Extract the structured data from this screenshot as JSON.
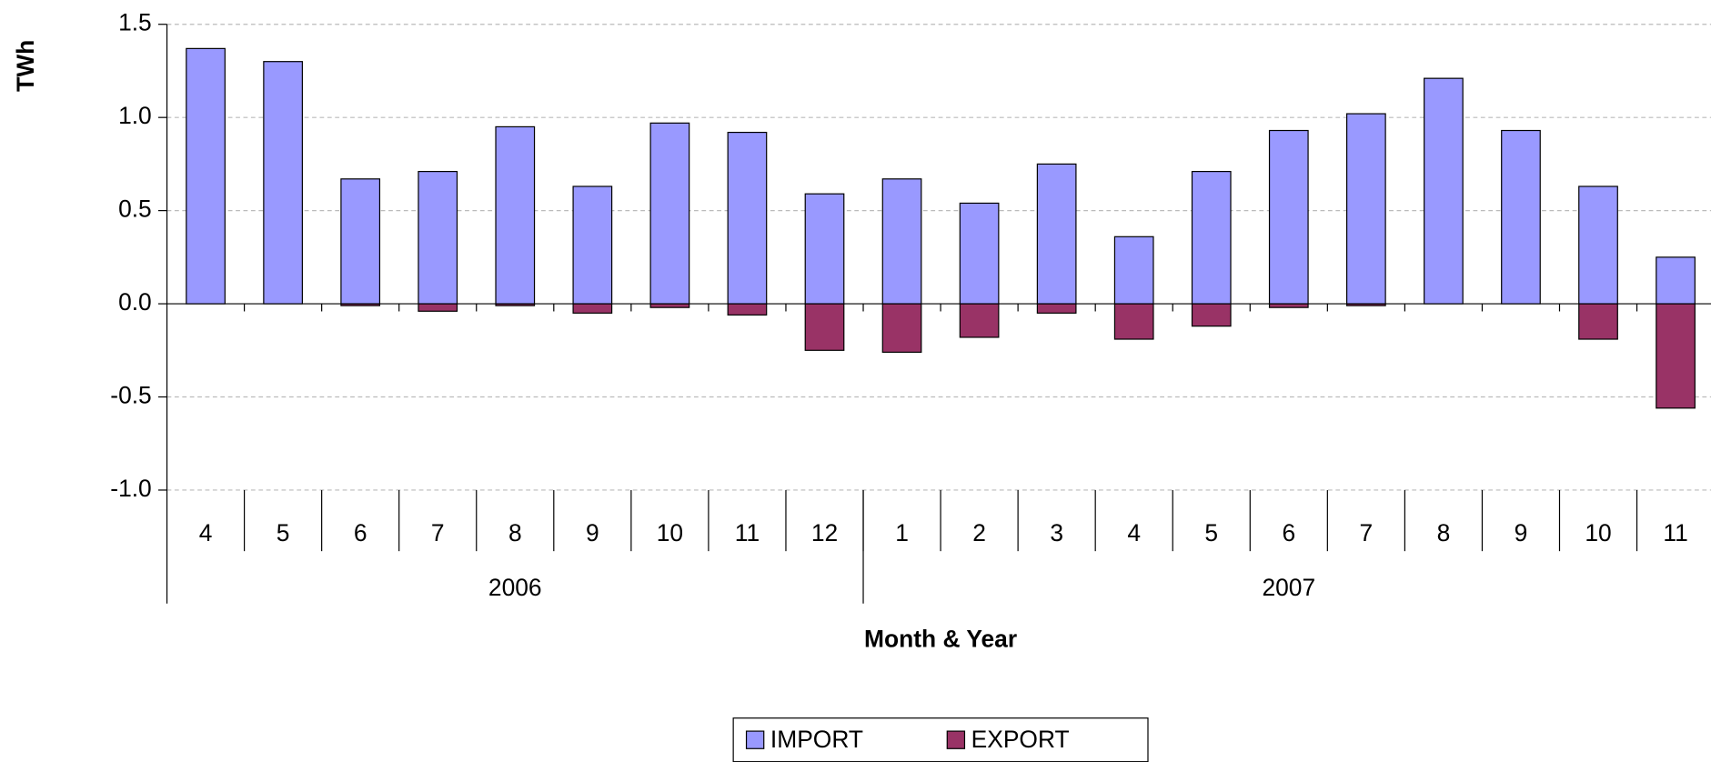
{
  "chart_data": {
    "type": "bar",
    "y_title": "TWh",
    "x_title": "Month & Year",
    "categories": [
      "4",
      "5",
      "6",
      "7",
      "8",
      "9",
      "10",
      "11",
      "12",
      "1",
      "2",
      "3",
      "4",
      "5",
      "6",
      "7",
      "8",
      "9",
      "10",
      "11"
    ],
    "x_groups": [
      {
        "name": "2006",
        "size": 9
      },
      {
        "name": "2007",
        "size": 11
      }
    ],
    "series": [
      {
        "name": "IMPORT",
        "color": "#9999ff",
        "values": [
          1.37,
          1.3,
          0.67,
          0.71,
          0.95,
          0.63,
          0.97,
          0.92,
          0.59,
          0.67,
          0.54,
          0.75,
          0.36,
          0.71,
          0.93,
          1.02,
          1.21,
          0.93,
          0.63,
          0.25
        ]
      },
      {
        "name": "EXPORT",
        "color": "#993366",
        "values": [
          0,
          0,
          -0.01,
          -0.04,
          -0.01,
          -0.05,
          -0.02,
          -0.06,
          -0.25,
          -0.26,
          -0.18,
          -0.05,
          -0.19,
          -0.12,
          -0.02,
          -0.01,
          0,
          0,
          -0.19,
          -0.56
        ]
      }
    ],
    "ylim": [
      -1.0,
      1.5
    ],
    "yticks": [
      {
        "value": -1.0,
        "label": "-1.0"
      },
      -0.5,
      {
        "value": 0,
        "label": "0.0"
      },
      0.5,
      {
        "value": 1.0,
        "label": "1.0"
      },
      1.5
    ],
    "grid": true,
    "legend": "bottom"
  }
}
